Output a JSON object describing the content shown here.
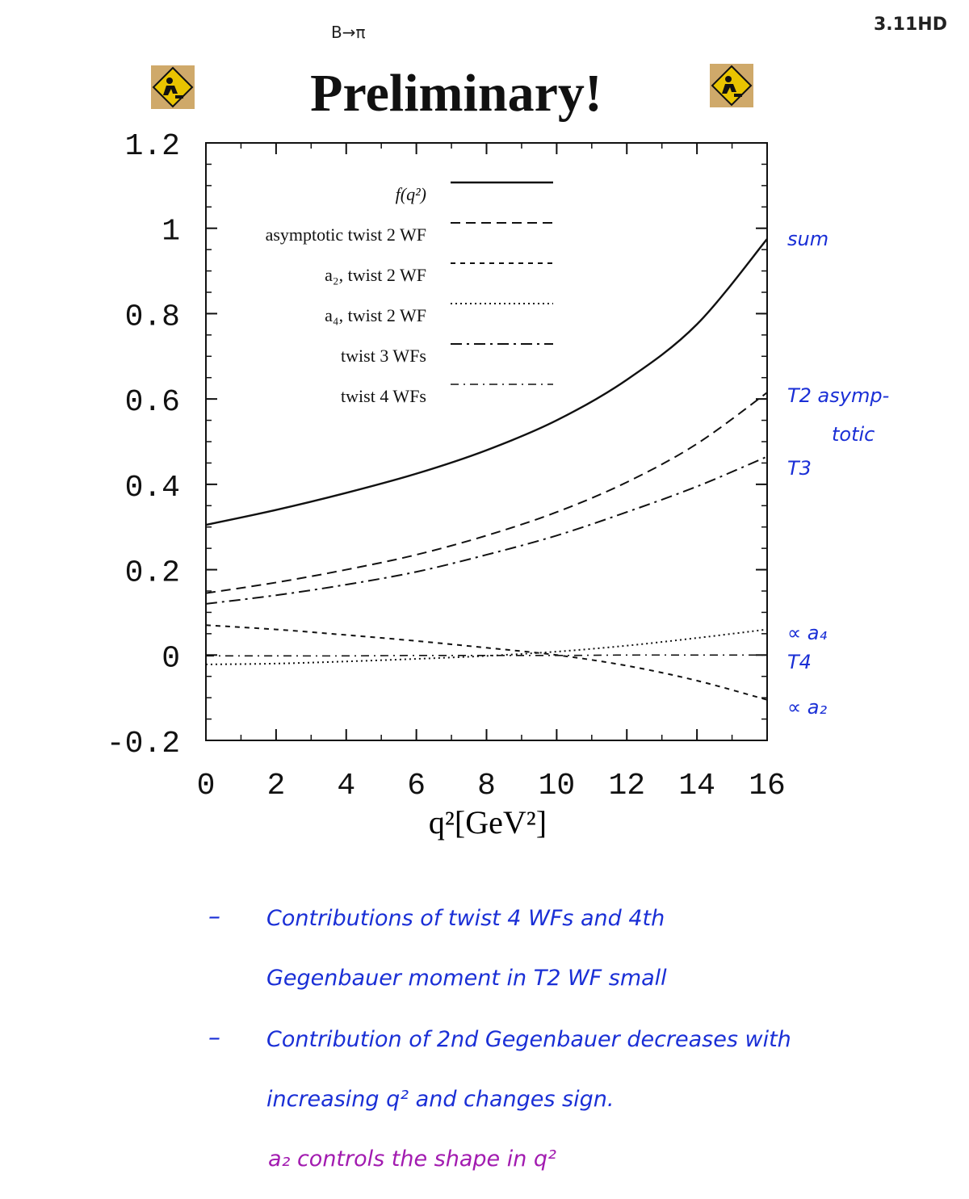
{
  "header": {
    "process": "B→π",
    "reference": "3.11HD",
    "title": "Preliminary!"
  },
  "chart_data": {
    "type": "line",
    "xlabel": "q²[GeV²]",
    "ylabel": "",
    "xlim": [
      0,
      16
    ],
    "ylim": [
      -0.2,
      1.2
    ],
    "x_ticks": [
      "0",
      "2",
      "4",
      "6",
      "8",
      "10",
      "12",
      "14",
      "16"
    ],
    "y_ticks": [
      "-0.2",
      "0",
      "0.2",
      "0.4",
      "0.6",
      "0.8",
      "1",
      "1.2"
    ],
    "x": [
      0,
      2,
      4,
      6,
      8,
      10,
      12,
      14,
      16
    ],
    "legend_position": "top-left",
    "series": [
      {
        "name": "f(q²)",
        "dash": "solid",
        "values": [
          0.305,
          0.34,
          0.38,
          0.425,
          0.48,
          0.55,
          0.645,
          0.775,
          0.975
        ]
      },
      {
        "name": "asymptotic twist 2 WF",
        "dash": "dashed",
        "values": [
          0.145,
          0.17,
          0.2,
          0.235,
          0.28,
          0.335,
          0.405,
          0.495,
          0.615
        ]
      },
      {
        "name": "a₂, twist 2 WF",
        "dash": "short-dashed",
        "values": [
          0.07,
          0.06,
          0.047,
          0.033,
          0.017,
          0.0,
          -0.025,
          -0.06,
          -0.105
        ]
      },
      {
        "name": "a₄, twist 2 WF",
        "dash": "dotted",
        "values": [
          -0.022,
          -0.02,
          -0.015,
          -0.009,
          -0.002,
          0.008,
          0.022,
          0.04,
          0.06
        ]
      },
      {
        "name": "twist 3 WFs",
        "dash": "dash-dot",
        "values": [
          0.12,
          0.14,
          0.165,
          0.195,
          0.235,
          0.28,
          0.335,
          0.395,
          0.465
        ]
      },
      {
        "name": "twist 4 WFs",
        "dash": "dash-dot-light",
        "values": [
          -0.002,
          -0.002,
          -0.002,
          -0.001,
          -0.001,
          -0.001,
          0.0,
          0.0,
          0.0
        ]
      }
    ]
  },
  "annotations": {
    "sum": "sum",
    "t2": "T2 asymp-",
    "t2b": "totic",
    "t3": "T3",
    "a4": "∝ a₄",
    "t4": "T4",
    "a2": "∝ a₂"
  },
  "notes": {
    "dash": "–",
    "line1": "Contributions of twist 4 WFs and 4th",
    "line2": "Gegenbauer moment in T2 WF small",
    "line3": "Contribution of 2nd Gegenbauer decreases with",
    "line4": "increasing q² and changes sign.",
    "line5": "a₂ controls the shape in q²"
  },
  "colors": {
    "ink_blue": "#1a2fd6",
    "ink_purple": "#a21bb0",
    "warning_yellow": "#e9c400"
  }
}
